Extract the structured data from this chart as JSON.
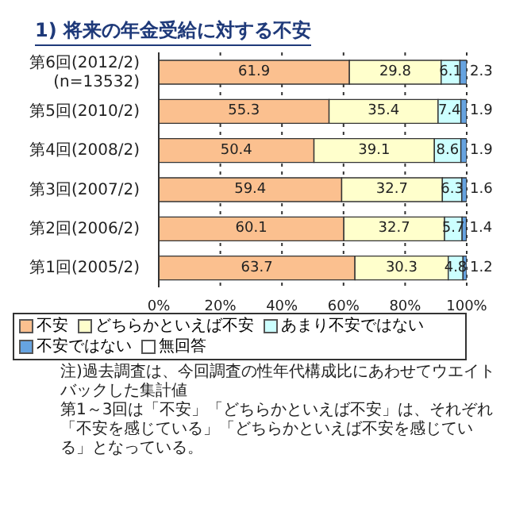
{
  "chart_data": {
    "type": "bar",
    "orientation": "horizontal",
    "stacked": true,
    "title": "1) 将来の年金受給に対する不安",
    "categories": [
      "第6回(2012/2)\n(n=13532)",
      "第5回(2010/2)",
      "第4回(2008/2)",
      "第3回(2007/2)",
      "第2回(2006/2)",
      "第1回(2005/2)"
    ],
    "series": [
      {
        "name": "不安",
        "color": "#fbc08f",
        "values": [
          61.9,
          55.3,
          50.4,
          59.4,
          60.1,
          63.7
        ]
      },
      {
        "name": "どちらかといえば不安",
        "color": "#ffffcc",
        "values": [
          29.8,
          35.4,
          39.1,
          32.7,
          32.7,
          30.3
        ]
      },
      {
        "name": "あまり不安ではない",
        "color": "#ccffff",
        "values": [
          6.1,
          7.4,
          8.6,
          6.3,
          5.7,
          4.8
        ]
      },
      {
        "name": "不安ではない",
        "color": "#66a3e0",
        "values": [
          2.3,
          1.9,
          1.9,
          1.6,
          1.4,
          1.2
        ]
      },
      {
        "name": "無回答",
        "color": "#ffffff",
        "values": [
          null,
          null,
          null,
          null,
          null,
          null
        ]
      }
    ],
    "xlim": [
      0,
      100
    ],
    "xticks": [
      {
        "value": 0,
        "label": "0%"
      },
      {
        "value": 20,
        "label": "20%"
      },
      {
        "value": 40,
        "label": "40%"
      },
      {
        "value": 60,
        "label": "60%"
      },
      {
        "value": 80,
        "label": "80%"
      },
      {
        "value": 100,
        "label": "100%"
      }
    ],
    "grid": "x",
    "legend": "bottom",
    "data_labels": true,
    "annotations": [
      "注)過去調査は、今回調査の性年代構成比にあわせてウエイトバックした集計値",
      "第1～3回は「不安」「どちらかといえば不安」は、それぞれ「不安を感じている」「どちらかといえば不安を感じている」となっている。"
    ]
  }
}
